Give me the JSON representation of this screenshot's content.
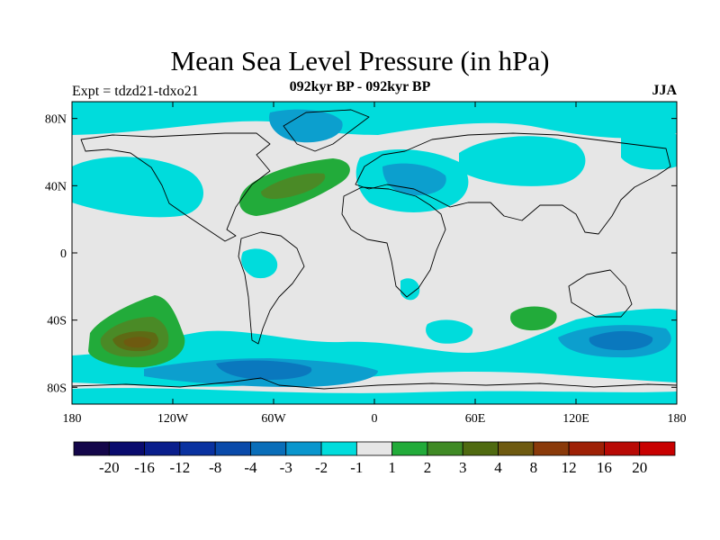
{
  "title": "Mean Sea Level Pressure (in hPa)",
  "subtitle": "092kyr BP - 092kyr BP",
  "experiment": "Expt = tdzd21-tdxo21",
  "season": "JJA",
  "map": {
    "projection": "cylindrical-equidistant",
    "lon_range": [
      -180,
      180
    ],
    "lat_range": [
      -90,
      90
    ],
    "lat_ticks": [
      {
        "value": 80,
        "label": "80N"
      },
      {
        "value": 40,
        "label": "40N"
      },
      {
        "value": 0,
        "label": "0"
      },
      {
        "value": -40,
        "label": "40S"
      },
      {
        "value": -80,
        "label": "80S"
      }
    ],
    "lon_ticks": [
      {
        "value": -180,
        "label": "180"
      },
      {
        "value": -120,
        "label": "120W"
      },
      {
        "value": -60,
        "label": "60W"
      },
      {
        "value": 0,
        "label": "0"
      },
      {
        "value": 60,
        "label": "60E"
      },
      {
        "value": 120,
        "label": "120E"
      },
      {
        "value": 180,
        "label": "180"
      }
    ],
    "background_color": "#e6e6e6",
    "anomalies": [
      {
        "name": "north-atlantic-high",
        "lon": -50,
        "lat": 38,
        "level_band": "2 to 3",
        "color": "#22ab3a"
      },
      {
        "name": "north-atlantic-high-core",
        "lon": -48,
        "lat": 39,
        "level_band": "3 to 4",
        "color": "#4a8a26"
      },
      {
        "name": "south-pacific-high",
        "lon": -136,
        "lat": -52,
        "level_band": "2 to 3",
        "color": "#22ab3a"
      },
      {
        "name": "south-pacific-high-core",
        "lon": -135,
        "lat": -54,
        "level_band": "4 to 8",
        "color": "#6e5a10"
      },
      {
        "name": "indian-ocean-high",
        "lon": 96,
        "lat": -38,
        "level_band": "1 to 2",
        "color": "#22ab3a"
      },
      {
        "name": "arctic-low",
        "lon": -30,
        "lat": 75,
        "level_band": "-3 to -2",
        "color": "#0c9fce"
      },
      {
        "name": "europe-low",
        "lon": 30,
        "lat": 44,
        "level_band": "-3 to -2",
        "color": "#0c9fce"
      },
      {
        "name": "southern-ocean-low",
        "lon": 145,
        "lat": -50,
        "level_band": "-4 to -3",
        "color": "#0a78be"
      },
      {
        "name": "antarctic-low",
        "lon": -50,
        "lat": -70,
        "level_band": "-4 to -3",
        "color": "#0a78be"
      },
      {
        "name": "central-pacific-low",
        "lon": -150,
        "lat": 40,
        "level_band": "-2 to -1",
        "color": "#00dcdc"
      }
    ]
  },
  "colorbar": {
    "colors": [
      "#14064a",
      "#0a0b6e",
      "#0a1e8c",
      "#0a32a0",
      "#0a4aaa",
      "#0a6eb9",
      "#0a96cd",
      "#00dcdc",
      "#e6e6e6",
      "#22ab3a",
      "#3f8a25",
      "#4f6a10",
      "#6e5a10",
      "#8a3a0a",
      "#9e2005",
      "#b80a05",
      "#c80000"
    ],
    "labels": [
      "-20",
      "-16",
      "-12",
      "-8",
      "-4",
      "-3",
      "-2",
      "-1",
      "1",
      "2",
      "3",
      "4",
      "8",
      "12",
      "16",
      "20"
    ]
  }
}
